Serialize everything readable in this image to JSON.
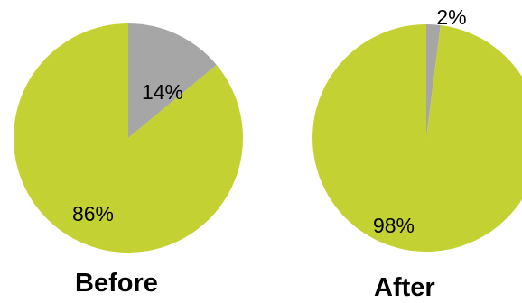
{
  "chart_data": [
    {
      "type": "pie",
      "title": "Before",
      "slices": [
        {
          "label": "14%",
          "value": 14,
          "color": "#A6A6A6"
        },
        {
          "label": "86%",
          "value": 86,
          "color": "#C3D232"
        }
      ]
    },
    {
      "type": "pie",
      "title": "After",
      "slices": [
        {
          "label": "2%",
          "value": 2,
          "color": "#A6A6A6"
        },
        {
          "label": "98%",
          "value": 98,
          "color": "#C3D232"
        }
      ]
    }
  ],
  "colors": {
    "gray": "#A6A6A6",
    "green": "#C3D232"
  }
}
